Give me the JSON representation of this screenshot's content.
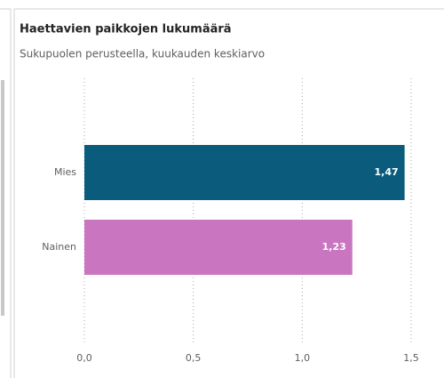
{
  "chart_data": {
    "type": "bar",
    "orientation": "horizontal",
    "title": "Haettavien paikkojen lukumäärä",
    "subtitle": "Sukupuolen perusteella, kuukauden keskiarvo",
    "categories": [
      "Mies",
      "Nainen"
    ],
    "values": [
      1.47,
      1.23
    ],
    "value_labels": [
      "1,47",
      "1,23"
    ],
    "colors": [
      "#0b5c7c",
      "#c975c0"
    ],
    "xlim": [
      0,
      1.5
    ],
    "xticks": [
      {
        "value": 0,
        "label": "0,0"
      },
      {
        "value": 0.5,
        "label": "0,5"
      },
      {
        "value": 1,
        "label": "1,0"
      },
      {
        "value": 1.5,
        "label": "1,5"
      }
    ],
    "grid": true
  }
}
